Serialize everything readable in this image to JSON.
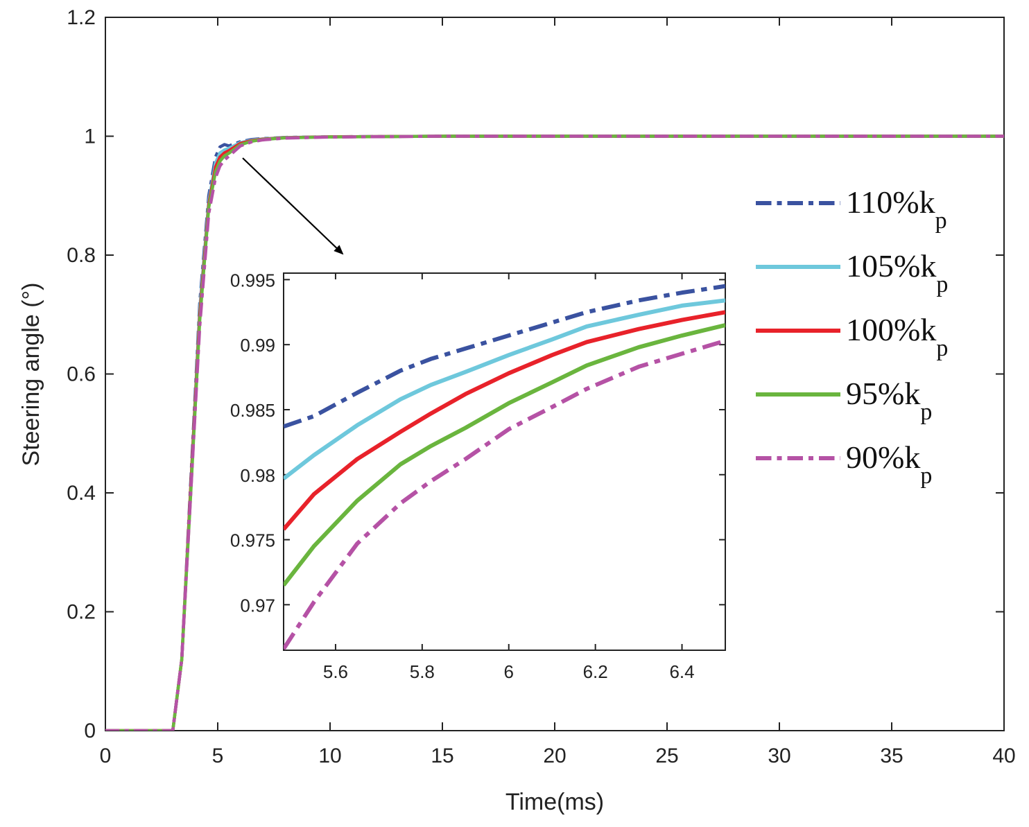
{
  "chart_data": [
    {
      "type": "line",
      "id": "main",
      "xlabel": "Time(ms)",
      "ylabel": "Steering angle (°)",
      "xlim": [
        0,
        40
      ],
      "ylim": [
        0,
        1.2
      ],
      "xticks": [
        0,
        5,
        10,
        15,
        20,
        25,
        30,
        35,
        40
      ],
      "xtick_labels": [
        "0",
        "5",
        "10",
        "15",
        "20",
        "25",
        "30",
        "35",
        "40"
      ],
      "yticks": [
        0,
        0.2,
        0.4,
        0.6,
        0.8,
        1,
        1.2
      ],
      "ytick_labels": [
        "0",
        "0.2",
        "0.4",
        "0.6",
        "0.8",
        "1",
        "1.2"
      ],
      "grid": false,
      "legend_position": "right",
      "series": [
        {
          "legend_main": "110%k",
          "legend_sub": "p",
          "color": "#3a52a0",
          "dash": "dashdot",
          "x": [
            0,
            3.0,
            3.4,
            3.8,
            4.2,
            4.6,
            4.9,
            5.1,
            5.3,
            5.5,
            6.0,
            6.5,
            7.0,
            8.0,
            10.0,
            15.0,
            40.0
          ],
          "y": [
            0,
            0,
            0.12,
            0.42,
            0.72,
            0.9,
            0.965,
            0.982,
            0.986,
            0.9837,
            0.9907,
            0.9945,
            0.996,
            0.998,
            0.999,
            1.0,
            1.0
          ]
        },
        {
          "legend_main": "105%k",
          "legend_sub": "p",
          "color": "#6ec8dc",
          "dash": "solid",
          "x": [
            0,
            3.0,
            3.4,
            3.8,
            4.2,
            4.6,
            4.9,
            5.1,
            5.3,
            5.5,
            6.0,
            6.5,
            7.0,
            8.0,
            10.0,
            15.0,
            40.0
          ],
          "y": [
            0,
            0,
            0.12,
            0.41,
            0.71,
            0.89,
            0.955,
            0.972,
            0.977,
            0.9797,
            0.9892,
            0.9934,
            0.9955,
            0.9978,
            0.999,
            1.0,
            1.0
          ]
        },
        {
          "legend_main": "100%k",
          "legend_sub": "p",
          "color": "#e8222a",
          "dash": "solid",
          "x": [
            0,
            3.0,
            3.4,
            3.8,
            4.2,
            4.6,
            4.9,
            5.1,
            5.3,
            5.5,
            6.0,
            6.5,
            7.0,
            8.0,
            10.0,
            15.0,
            40.0
          ],
          "y": [
            0,
            0,
            0.12,
            0.41,
            0.7,
            0.885,
            0.948,
            0.965,
            0.972,
            0.9758,
            0.9878,
            0.9925,
            0.995,
            0.9975,
            0.999,
            1.0,
            1.0
          ]
        },
        {
          "legend_main": "95%k",
          "legend_sub": "p",
          "color": "#6ab53e",
          "dash": "solid",
          "x": [
            0,
            3.0,
            3.4,
            3.8,
            4.2,
            4.6,
            4.9,
            5.1,
            5.3,
            5.5,
            6.0,
            6.5,
            7.0,
            8.0,
            10.0,
            15.0,
            40.0
          ],
          "y": [
            0,
            0,
            0.12,
            0.4,
            0.69,
            0.88,
            0.94,
            0.958,
            0.967,
            0.9715,
            0.9855,
            0.9915,
            0.9945,
            0.9972,
            0.9988,
            1.0,
            1.0
          ]
        },
        {
          "legend_main": "90%k",
          "legend_sub": "p",
          "color": "#b552a5",
          "dash": "dashdot",
          "x": [
            0,
            3.0,
            3.4,
            3.8,
            4.2,
            4.6,
            4.9,
            5.1,
            5.3,
            5.5,
            6.0,
            6.5,
            7.0,
            8.0,
            10.0,
            15.0,
            40.0
          ],
          "y": [
            0,
            0,
            0.12,
            0.4,
            0.68,
            0.87,
            0.93,
            0.95,
            0.96,
            0.9666,
            0.9835,
            0.9903,
            0.9938,
            0.9968,
            0.9986,
            1.0,
            1.0
          ]
        }
      ]
    },
    {
      "type": "line",
      "id": "inset",
      "xlim": [
        5.48,
        6.5
      ],
      "ylim": [
        0.9665,
        0.9955
      ],
      "xticks": [
        5.6,
        5.8,
        6.0,
        6.2,
        6.4
      ],
      "xtick_labels": [
        "5.6",
        "5.8",
        "6",
        "6.2",
        "6.4"
      ],
      "yticks": [
        0.97,
        0.975,
        0.98,
        0.985,
        0.99,
        0.995
      ],
      "ytick_labels": [
        "0.97",
        "0.975",
        "0.98",
        "0.985",
        "0.99",
        "0.995"
      ],
      "grid": false,
      "series": [
        {
          "color": "#3a52a0",
          "dash": "dashdot",
          "x": [
            5.48,
            5.55,
            5.65,
            5.75,
            5.82,
            5.9,
            6.0,
            6.1,
            6.18,
            6.3,
            6.4,
            6.5
          ],
          "y": [
            0.9837,
            0.9845,
            0.9863,
            0.988,
            0.9889,
            0.9897,
            0.9907,
            0.9917,
            0.9925,
            0.9934,
            0.994,
            0.9945
          ]
        },
        {
          "color": "#6ec8dc",
          "dash": "solid",
          "x": [
            5.48,
            5.55,
            5.65,
            5.75,
            5.82,
            5.9,
            6.0,
            6.1,
            6.18,
            6.3,
            6.4,
            6.5
          ],
          "y": [
            0.9797,
            0.9815,
            0.9838,
            0.9858,
            0.9869,
            0.9879,
            0.9892,
            0.9904,
            0.9914,
            0.9923,
            0.993,
            0.9934
          ]
        },
        {
          "color": "#e8222a",
          "dash": "solid",
          "x": [
            5.48,
            5.55,
            5.65,
            5.75,
            5.82,
            5.9,
            6.0,
            6.1,
            6.18,
            6.3,
            6.4,
            6.5
          ],
          "y": [
            0.9758,
            0.9785,
            0.9812,
            0.9833,
            0.9847,
            0.9862,
            0.9878,
            0.9892,
            0.9902,
            0.9912,
            0.9919,
            0.9925
          ]
        },
        {
          "color": "#6ab53e",
          "dash": "solid",
          "x": [
            5.48,
            5.55,
            5.65,
            5.75,
            5.82,
            5.9,
            6.0,
            6.1,
            6.18,
            6.3,
            6.4,
            6.5
          ],
          "y": [
            0.9715,
            0.9745,
            0.978,
            0.9808,
            0.9822,
            0.9836,
            0.9855,
            0.9871,
            0.9884,
            0.9898,
            0.9907,
            0.9915
          ]
        },
        {
          "color": "#b552a5",
          "dash": "dashdot",
          "x": [
            5.48,
            5.55,
            5.65,
            5.75,
            5.82,
            5.9,
            6.0,
            6.1,
            6.18,
            6.3,
            6.4,
            6.5
          ],
          "y": [
            0.9666,
            0.9702,
            0.9747,
            0.9778,
            0.9795,
            0.9812,
            0.9835,
            0.9852,
            0.9866,
            0.9883,
            0.9893,
            0.9903
          ]
        }
      ]
    }
  ]
}
